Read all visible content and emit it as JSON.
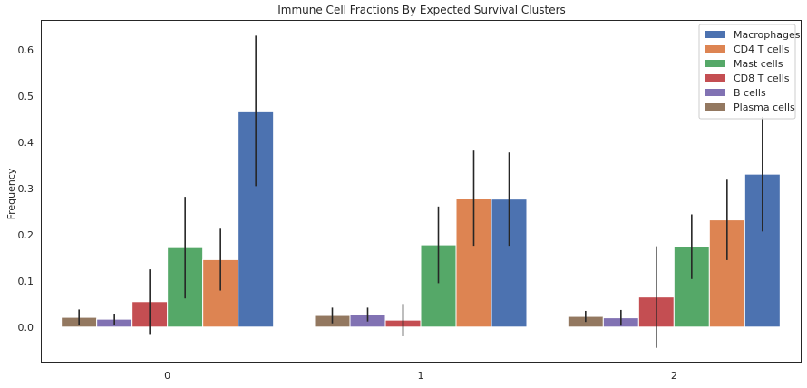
{
  "chart_data": {
    "type": "bar",
    "title": "Immune Cell Fractions By Expected Survival Clusters",
    "xlabel": "",
    "ylabel": "Frequency",
    "categories": [
      "0",
      "1",
      "2"
    ],
    "ylim": [
      -0.075,
      0.665
    ],
    "yticks": [
      "0.0",
      "0.1",
      "0.2",
      "0.3",
      "0.4",
      "0.5",
      "0.6"
    ],
    "grid": false,
    "legend_position": "top-right",
    "series": [
      {
        "name": "Plasma cells",
        "color": "#937860",
        "values": [
          0.021,
          0.025,
          0.023
        ],
        "err": [
          0.017,
          0.017,
          0.012
        ]
      },
      {
        "name": "B cells",
        "color": "#8172b3",
        "values": [
          0.017,
          0.027,
          0.02
        ],
        "err": [
          0.012,
          0.015,
          0.017
        ]
      },
      {
        "name": "CD8 T cells",
        "color": "#c44e52",
        "values": [
          0.055,
          0.015,
          0.065
        ],
        "err": [
          0.07,
          0.035,
          0.11
        ]
      },
      {
        "name": "Mast cells",
        "color": "#55a868",
        "values": [
          0.172,
          0.178,
          0.174
        ],
        "err": [
          0.11,
          0.083,
          0.07
        ]
      },
      {
        "name": "CD4 T cells",
        "color": "#dd8452",
        "values": [
          0.146,
          0.279,
          0.232
        ],
        "err": [
          0.067,
          0.103,
          0.087
        ]
      },
      {
        "name": "Macrophages",
        "color": "#4c72b0",
        "values": [
          0.468,
          0.277,
          0.331
        ],
        "err": [
          0.163,
          0.101,
          0.124
        ]
      }
    ],
    "legend_order": [
      "Macrophages",
      "CD4 T cells",
      "Mast cells",
      "CD8 T cells",
      "B cells",
      "Plasma cells"
    ]
  }
}
